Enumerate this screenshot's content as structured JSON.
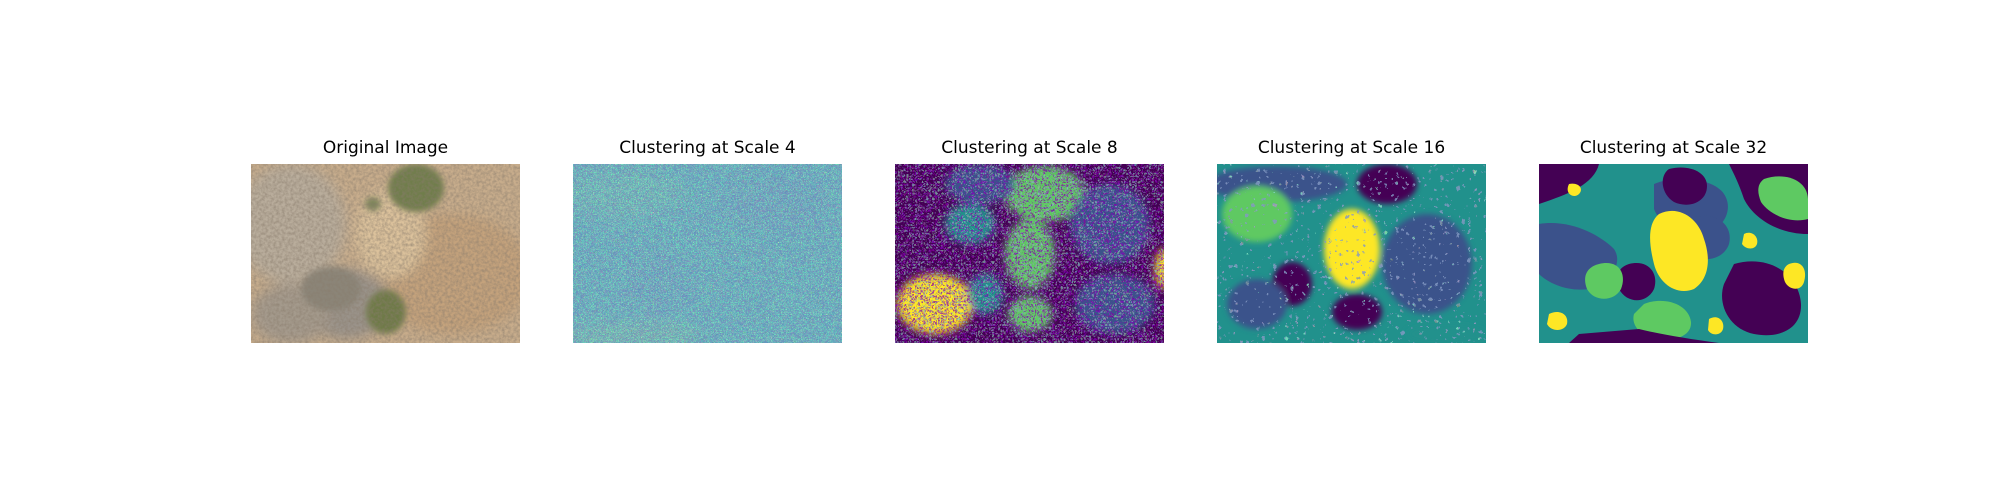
{
  "figure": {
    "panels": [
      {
        "title": "Original Image"
      },
      {
        "title": "Clustering at Scale 4"
      },
      {
        "title": "Clustering at Scale 8"
      },
      {
        "title": "Clustering at Scale 16"
      },
      {
        "title": "Clustering at Scale 32"
      }
    ],
    "colors": {
      "viridis_purple": "#440154",
      "viridis_blue": "#3b528b",
      "viridis_teal": "#21918c",
      "viridis_green": "#5ec962",
      "viridis_yellow": "#fde725",
      "ground_tan": "#c9b08c",
      "shrub_green": "#6f7d4c"
    }
  }
}
